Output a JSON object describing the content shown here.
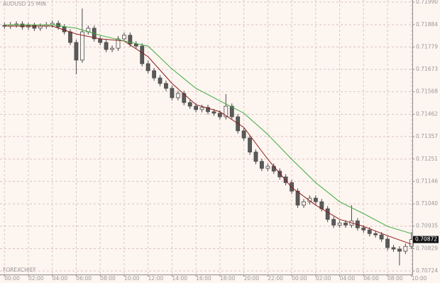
{
  "chart_data": {
    "type": "candlestick",
    "title": "AUDUSD 15 MIN",
    "watermark": "FOREXCHIEF",
    "background": "#fdf5f0",
    "grid": true,
    "up_color": "#fdf5f0",
    "down_color": "#5a5a5a",
    "wick_color": "#4a4a4a",
    "open": [
      0.7188,
      0.71877,
      0.71883,
      0.71887,
      0.71873,
      0.7188,
      0.71867,
      0.71877,
      0.71883,
      0.7189,
      0.71873,
      0.7185,
      0.718,
      0.71717,
      0.7185,
      0.71867,
      0.71817,
      0.718,
      0.71767,
      0.71773,
      0.71817,
      0.71834,
      0.71793,
      0.71783,
      0.717,
      0.71667,
      0.71633,
      0.71607,
      0.71584,
      0.7154,
      0.7156,
      0.71517,
      0.715,
      0.71484,
      0.71494,
      0.71474,
      0.71467,
      0.7145,
      0.715,
      0.7145,
      0.71384,
      0.7135,
      0.71284,
      0.7124,
      0.71207,
      0.71217,
      0.71194,
      0.71167,
      0.7114,
      0.711,
      0.71034,
      0.7105,
      0.71067,
      0.7105,
      0.71017,
      0.70967,
      0.7094,
      0.7095,
      0.7094,
      0.7096,
      0.70927,
      0.70917,
      0.709,
      0.70894,
      0.70874,
      0.70834,
      0.70827,
      0.70817,
      0.7084
    ],
    "high": [
      0.71893,
      0.71896,
      0.719,
      0.719,
      0.71893,
      0.71893,
      0.7189,
      0.71896,
      0.71903,
      0.71903,
      0.71886,
      0.71863,
      0.71813,
      0.7196,
      0.7188,
      0.7188,
      0.7183,
      0.71813,
      0.71786,
      0.7183,
      0.71847,
      0.71847,
      0.71806,
      0.71796,
      0.71713,
      0.7168,
      0.71646,
      0.7162,
      0.71597,
      0.71573,
      0.71573,
      0.7153,
      0.71513,
      0.71507,
      0.71507,
      0.71487,
      0.7148,
      0.71557,
      0.71513,
      0.71463,
      0.71397,
      0.71363,
      0.71297,
      0.71253,
      0.7123,
      0.7123,
      0.71207,
      0.7118,
      0.71153,
      0.71113,
      0.71063,
      0.7108,
      0.7108,
      0.71063,
      0.7103,
      0.7098,
      0.70963,
      0.70963,
      0.71034,
      0.70973,
      0.7094,
      0.7093,
      0.70913,
      0.70907,
      0.70887,
      0.70847,
      0.7084,
      0.70853,
      0.70907
    ],
    "low": [
      0.71864,
      0.71864,
      0.7187,
      0.7186,
      0.7186,
      0.71854,
      0.71854,
      0.71864,
      0.7187,
      0.7186,
      0.71837,
      0.71787,
      0.7165,
      0.71704,
      0.71837,
      0.71804,
      0.71787,
      0.71754,
      0.71754,
      0.7176,
      0.71804,
      0.7178,
      0.7177,
      0.71687,
      0.71654,
      0.7162,
      0.71594,
      0.71571,
      0.71527,
      0.71527,
      0.71504,
      0.71487,
      0.71471,
      0.71471,
      0.71461,
      0.71454,
      0.71437,
      0.71437,
      0.71437,
      0.71371,
      0.71337,
      0.71271,
      0.71227,
      0.71194,
      0.71194,
      0.71181,
      0.71154,
      0.71127,
      0.71087,
      0.71021,
      0.71021,
      0.71037,
      0.71037,
      0.71004,
      0.70954,
      0.70927,
      0.70927,
      0.70927,
      0.70927,
      0.70914,
      0.70904,
      0.70887,
      0.70881,
      0.70861,
      0.70821,
      0.70814,
      0.7075,
      0.70804,
      0.70827
    ],
    "close": [
      0.71877,
      0.71883,
      0.71887,
      0.71873,
      0.7188,
      0.71867,
      0.71877,
      0.71883,
      0.7189,
      0.71873,
      0.7185,
      0.718,
      0.71717,
      0.7185,
      0.71867,
      0.71817,
      0.718,
      0.71767,
      0.71773,
      0.71817,
      0.71834,
      0.71793,
      0.71783,
      0.717,
      0.71667,
      0.71633,
      0.71607,
      0.71584,
      0.7154,
      0.7156,
      0.71517,
      0.715,
      0.71484,
      0.71494,
      0.71474,
      0.71467,
      0.7145,
      0.715,
      0.7145,
      0.71384,
      0.7135,
      0.71284,
      0.7124,
      0.71207,
      0.71217,
      0.71194,
      0.71167,
      0.7114,
      0.711,
      0.71034,
      0.7105,
      0.71067,
      0.7105,
      0.71017,
      0.70967,
      0.7094,
      0.7095,
      0.7094,
      0.7096,
      0.70927,
      0.70917,
      0.709,
      0.70894,
      0.70874,
      0.70834,
      0.70827,
      0.70817,
      0.7084,
      0.70872
    ],
    "series": [
      {
        "color": "#8b1a1a",
        "x": [
          0,
          4,
          8,
          12,
          16,
          20,
          24,
          28,
          32,
          36,
          40,
          44,
          48,
          52,
          56,
          60,
          64,
          68
        ],
        "values": [
          0.71877,
          0.71877,
          0.71877,
          0.7184,
          0.71817,
          0.71807,
          0.71733,
          0.71607,
          0.71507,
          0.71474,
          0.714,
          0.7125,
          0.71117,
          0.71034,
          0.70967,
          0.70934,
          0.7089,
          0.7085
        ]
      },
      {
        "color": "#3caa3c",
        "x": [
          0,
          4,
          8,
          12,
          16,
          20,
          24,
          28,
          32,
          36,
          40,
          44,
          48,
          52,
          56,
          60,
          64,
          68
        ],
        "values": [
          0.71883,
          0.71883,
          0.71883,
          0.71867,
          0.71834,
          0.71807,
          0.71783,
          0.71675,
          0.71584,
          0.71525,
          0.71467,
          0.71367,
          0.7125,
          0.7114,
          0.7105,
          0.70994,
          0.70934,
          0.709
        ]
      }
    ],
    "last_price": 0.70872,
    "xlim": [
      -0.5,
      68.5
    ],
    "xticks": [
      {
        "value": 0,
        "label": "00:00"
      },
      {
        "value": 4,
        "label": "02:00"
      },
      {
        "value": 8,
        "label": "04:00"
      },
      {
        "value": 12,
        "label": "06:00"
      },
      {
        "value": 16,
        "label": "08:00"
      },
      {
        "value": 20,
        "label": "10:00"
      },
      {
        "value": 24,
        "label": "12:00"
      },
      {
        "value": 28,
        "label": "14:00"
      },
      {
        "value": 32,
        "label": "16:00"
      },
      {
        "value": 36,
        "label": "18:00"
      },
      {
        "value": 40,
        "label": "20:00"
      },
      {
        "value": 44,
        "label": "22:00"
      },
      {
        "value": 48,
        "label": "00:00"
      },
      {
        "value": 52,
        "label": "02:00"
      },
      {
        "value": 56,
        "label": "04:00"
      },
      {
        "value": 60,
        "label": "06:00"
      },
      {
        "value": 64,
        "label": "08:00"
      },
      {
        "value": 68,
        "label": "10:00"
      }
    ],
    "ylim": [
      0.70724,
      0.7199
    ],
    "yticks": [
      {
        "value": 0.7199,
        "label": "0.71990"
      },
      {
        "value": 0.71884,
        "label": "0.71884"
      },
      {
        "value": 0.71779,
        "label": "0.71779"
      },
      {
        "value": 0.71673,
        "label": "0.71673"
      },
      {
        "value": 0.71568,
        "label": "0.71568"
      },
      {
        "value": 0.71462,
        "label": "0.71462"
      },
      {
        "value": 0.71357,
        "label": "0.71357"
      },
      {
        "value": 0.71251,
        "label": "0.71251"
      },
      {
        "value": 0.71146,
        "label": "0.71146"
      },
      {
        "value": 0.7104,
        "label": "0.71040"
      },
      {
        "value": 0.70935,
        "label": "0.70935"
      },
      {
        "value": 0.70829,
        "label": "0.70829"
      },
      {
        "value": 0.70724,
        "label": "0.70724"
      }
    ]
  }
}
